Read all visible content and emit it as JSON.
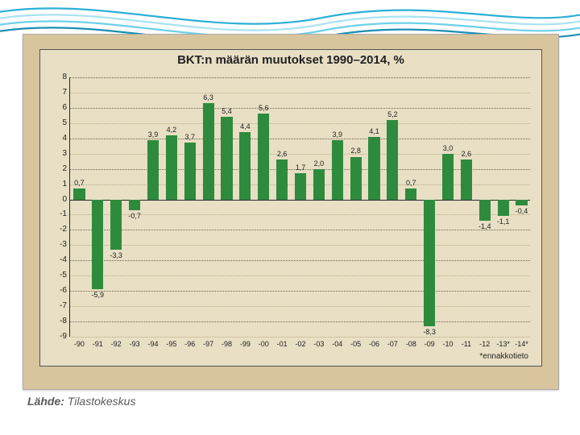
{
  "slide": {
    "background": "#ffffff",
    "wave_colors": [
      "#2cb0d6",
      "#a7e3f2",
      "#1b8fb3",
      "#6dd0e8"
    ]
  },
  "source_label": "Lähde:",
  "source_value": "Tilastokeskus",
  "chart": {
    "type": "bar",
    "title": "BKT:n määrän muutokset 1990–2014, %",
    "title_fontsize": 15,
    "panel_bg": "#e8dfc4",
    "plot_bg": "#e8dfc4",
    "grid_color_major": "#6d6450",
    "grid_color_minor": "#b9ac88",
    "axis_color": "#2a2a2a",
    "bar_color": "#2e8b3d",
    "bar_width": 0.62,
    "value_fontsize": 9,
    "label_fontsize": 10,
    "ylim": [
      -9,
      8
    ],
    "ytick_step": 1,
    "categories": [
      "-90",
      "-91",
      "-92",
      "-93",
      "-94",
      "-95",
      "-96",
      "-97",
      "-98",
      "-99",
      "-00",
      "-01",
      "-02",
      "-03",
      "-04",
      "-05",
      "-06",
      "-07",
      "-08",
      "-09",
      "-10",
      "-11",
      "-12",
      "-13*",
      "-14*"
    ],
    "values": [
      0.7,
      -5.9,
      -3.3,
      -0.7,
      3.9,
      4.2,
      3.7,
      6.3,
      5.4,
      4.4,
      5.6,
      2.6,
      1.7,
      2.0,
      3.9,
      2.8,
      4.1,
      5.2,
      0.7,
      -8.3,
      3.0,
      2.6,
      -1.4,
      -1.1,
      -0.4
    ],
    "footnote": "*ennakkotieto"
  }
}
